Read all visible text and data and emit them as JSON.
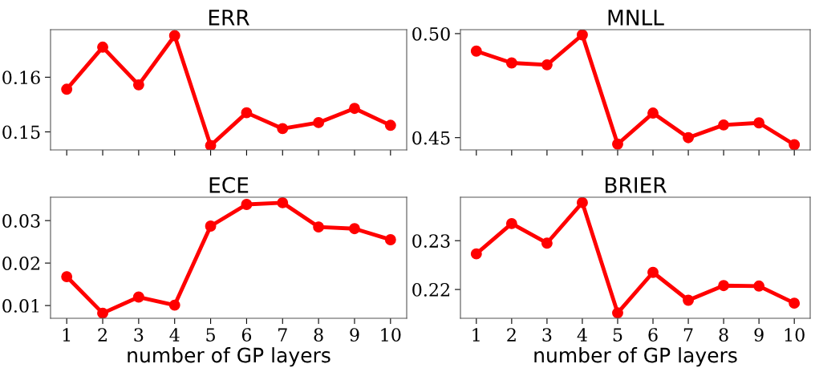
{
  "chart_data": [
    {
      "type": "line",
      "title": "ERR",
      "x": [
        1,
        2,
        3,
        4,
        5,
        6,
        7,
        8,
        9,
        10
      ],
      "series": [
        {
          "color": "#ff0000",
          "values": [
            0.1578,
            0.1655,
            0.1586,
            0.1676,
            0.1475,
            0.1535,
            0.1506,
            0.1517,
            0.1543,
            0.1512
          ]
        }
      ],
      "xlim": [
        0.55,
        10.45
      ],
      "xticks": [
        1,
        2,
        3,
        4,
        5,
        6,
        7,
        8,
        9,
        10
      ],
      "ylim": [
        0.1467,
        0.1687
      ],
      "yticks": [
        0.15,
        0.16
      ],
      "tick_labels": "y",
      "marker": "circle",
      "line_style": "solid",
      "grid": false,
      "legend": false
    },
    {
      "type": "line",
      "title": "MNLL",
      "x": [
        1,
        2,
        3,
        4,
        5,
        6,
        7,
        8,
        9,
        10
      ],
      "series": [
        {
          "color": "#ff0000",
          "values": [
            0.4916,
            0.4859,
            0.485,
            0.4994,
            0.4469,
            0.4618,
            0.45,
            0.4561,
            0.4571,
            0.4466
          ]
        }
      ],
      "xlim": [
        0.55,
        10.45
      ],
      "xticks": [
        1,
        2,
        3,
        4,
        5,
        6,
        7,
        8,
        9,
        10
      ],
      "ylim": [
        0.4441,
        0.5019
      ],
      "yticks": [
        {
          "value": 0.45,
          "label": "0.45"
        },
        {
          "value": 0.5,
          "label": "0.50"
        }
      ],
      "tick_labels": "y",
      "marker": "circle",
      "line_style": "solid",
      "grid": false,
      "legend": false
    },
    {
      "type": "line",
      "title": "ECE",
      "xlabel": "number of GP layers",
      "x": [
        1,
        2,
        3,
        4,
        5,
        6,
        7,
        8,
        9,
        10
      ],
      "series": [
        {
          "color": "#ff0000",
          "values": [
            0.0168,
            0.0082,
            0.012,
            0.0101,
            0.0287,
            0.0338,
            0.0342,
            0.0285,
            0.0281,
            0.0255
          ]
        }
      ],
      "xlim": [
        0.55,
        10.45
      ],
      "xticks": [
        1,
        2,
        3,
        4,
        5,
        6,
        7,
        8,
        9,
        10
      ],
      "ylim": [
        0.007,
        0.0355
      ],
      "yticks": [
        0.01,
        0.02,
        0.03
      ],
      "marker": "circle",
      "line_style": "solid",
      "grid": false,
      "legend": false
    },
    {
      "type": "line",
      "title": "BRIER",
      "xlabel": "number of GP layers",
      "x": [
        1,
        2,
        3,
        4,
        5,
        6,
        7,
        8,
        9,
        10
      ],
      "series": [
        {
          "color": "#ff0000",
          "values": [
            0.2273,
            0.2335,
            0.2295,
            0.2378,
            0.2152,
            0.2235,
            0.2178,
            0.2208,
            0.2207,
            0.2172
          ]
        }
      ],
      "xlim": [
        0.55,
        10.45
      ],
      "xticks": [
        1,
        2,
        3,
        4,
        5,
        6,
        7,
        8,
        9,
        10
      ],
      "ylim": [
        0.2141,
        0.2389
      ],
      "yticks": [
        0.22,
        0.23
      ],
      "marker": "circle",
      "line_style": "solid",
      "grid": false,
      "legend": false
    }
  ]
}
